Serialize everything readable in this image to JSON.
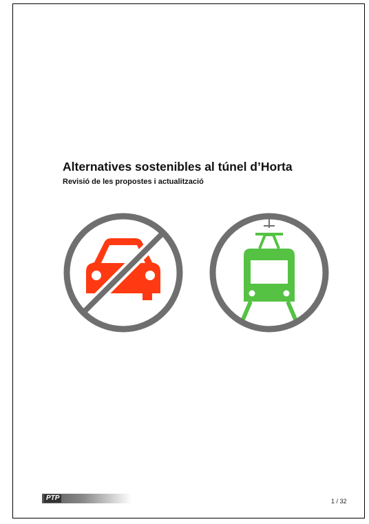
{
  "document": {
    "title": "Alternatives sostenibles al túnel d’Horta",
    "subtitle": "Revisió de les propostes i actualització",
    "footer": {
      "logo": "PTP",
      "page": "1 / 32"
    }
  }
}
